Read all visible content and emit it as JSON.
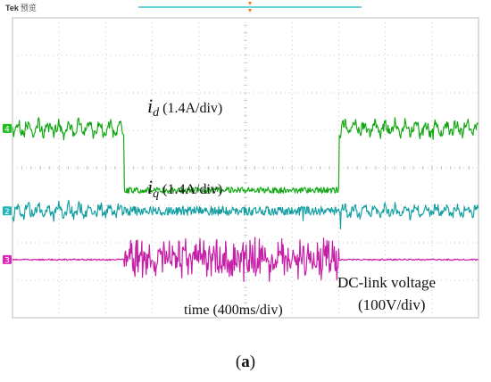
{
  "header": {
    "brand": "Tek",
    "status": "预览"
  },
  "chart_data": {
    "type": "line",
    "title": "",
    "xlabel": "time (400ms/div)",
    "divisions": {
      "x": 10,
      "y": 8
    },
    "step_change": {
      "start_div": 2.4,
      "end_div": 7.0
    },
    "channels": [
      {
        "marker": "4",
        "color": "#1fbf1f",
        "dark": "#0c6e0c",
        "levels_div": {
          "before": 2.95,
          "during": 4.6,
          "after": 2.95
        },
        "ripple_div": {
          "before": 0.25,
          "during": 0.08,
          "after": 0.25
        }
      },
      {
        "marker": "2",
        "color": "#22b5b8",
        "dark": "#0d6e72",
        "levels_div": {
          "before": 5.15,
          "during": 5.15,
          "after": 5.15
        },
        "ripple_div": {
          "before": 0.25,
          "during": 0.12,
          "after": 0.2
        }
      },
      {
        "marker": "3",
        "color": "#e024b8",
        "dark": "#8a1f84",
        "levels_div": {
          "before": 6.45,
          "during": 6.45,
          "after": 6.45
        },
        "ripple_div": {
          "before": 0.02,
          "during": 0.45,
          "after": 0.02
        }
      }
    ],
    "annotations": {
      "id_symbol": "i",
      "id_sub": "d",
      "id_unit": "(1.4A/div)",
      "iq_symbol": "i",
      "iq_sub": "q",
      "iq_unit": "(1.4A/div)",
      "dc_line1": "DC-link voltage",
      "dc_line2": "(100V/div)"
    }
  },
  "caption": {
    "open": "(",
    "letter": "a",
    "close": ")"
  }
}
